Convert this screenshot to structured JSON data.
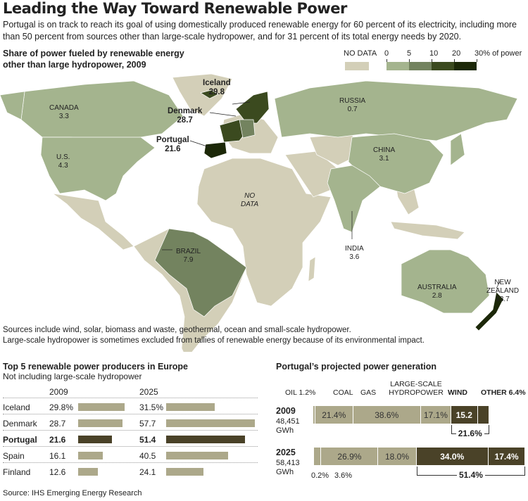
{
  "title": "Leading the Way Toward Renewable Power",
  "intro": "Portugal is on track to reach its goal of using domestically produced renewable energy for 60 percent of its electricity, including more than 50 percent from sources other than large-scale hydropower, and for 31 percent of its total energy needs by 2020.",
  "map": {
    "title_line1": "Share of power fueled by renewable energy",
    "title_line2": "other than large hydropower, 2009",
    "legend": {
      "no_data": "NO DATA",
      "ticks": [
        "0",
        "5",
        "10",
        "20",
        "30% of power"
      ],
      "colors": [
        "#a4b48e",
        "#73835f",
        "#3b4a1f",
        "#1c2808"
      ],
      "no_data_color": "#d3cfb8"
    },
    "labels": [
      {
        "name": "CANADA",
        "value": "3.3"
      },
      {
        "name": "U.S.",
        "value": "4.3"
      },
      {
        "name": "Iceland",
        "value": "29.8"
      },
      {
        "name": "Denmark",
        "value": "28.7"
      },
      {
        "name": "Portugal",
        "value": "21.6"
      },
      {
        "name": "RUSSIA",
        "value": "0.7"
      },
      {
        "name": "CHINA",
        "value": "3.1"
      },
      {
        "name": "INDIA",
        "value": "3.6"
      },
      {
        "name": "BRAZIL",
        "value": "7.9"
      },
      {
        "name": "AUSTRALIA",
        "value": "2.8"
      },
      {
        "name": "NEW ZEALAND",
        "value": "13.7"
      }
    ],
    "no_data_label": [
      "NO",
      "DATA"
    ],
    "note1": "Sources include wind, solar, biomass and waste, geothermal, ocean and small-scale hydropower.",
    "note2": "Large-scale hydropower is sometimes excluded from tallies of renewable energy because of its environmental impact."
  },
  "chart_data": [
    {
      "type": "bar",
      "title": "Top 5 renewable power producers in Europe",
      "subtitle": "Not including large-scale hydropower",
      "categories": [
        "Iceland",
        "Denmark",
        "Portugal",
        "Spain",
        "Finland"
      ],
      "series": [
        {
          "name": "2009",
          "values": [
            29.8,
            28.7,
            21.6,
            16.1,
            12.6
          ],
          "labels": [
            "29.8%",
            "28.7",
            "21.6",
            "16.1",
            "12.6"
          ]
        },
        {
          "name": "2025",
          "values": [
            31.5,
            57.7,
            51.4,
            40.5,
            24.1
          ],
          "labels": [
            "31.5%",
            "57.7",
            "51.4",
            "40.5",
            "24.1"
          ]
        }
      ],
      "highlight": "Portugal",
      "source": "Source: IHS Emerging Energy Research"
    },
    {
      "type": "bar",
      "stacked": true,
      "title": "Portugal’s projected power generation",
      "categories": [
        "Oil",
        "Coal",
        "Gas",
        "Large-scale hydropower",
        "Wind",
        "Other"
      ],
      "category_labels": [
        "OIL 1.2%",
        "COAL",
        "GAS",
        "LARGE-SCALE HYDROPOWER",
        "WIND",
        "OTHER 6.4%"
      ],
      "series": [
        {
          "name": "2009",
          "total": "48,451",
          "unit": "GWh",
          "values": [
            1.2,
            21.4,
            38.6,
            17.1,
            15.2,
            6.4
          ],
          "labels": [
            "",
            "21.4%",
            "38.6%",
            "17.1%",
            "15.2",
            ""
          ],
          "renewable_total": "21.6%"
        },
        {
          "name": "2025",
          "total": "58,413",
          "unit": "GWh",
          "values": [
            0.2,
            3.6,
            26.9,
            18.0,
            34.0,
            17.4
          ],
          "labels": [
            "",
            "",
            "26.9%",
            "18.0%",
            "34.0%",
            "17.4%"
          ],
          "small_labels": [
            "0.2%",
            "3.6%"
          ],
          "renewable_total": "51.4%"
        }
      ]
    }
  ]
}
